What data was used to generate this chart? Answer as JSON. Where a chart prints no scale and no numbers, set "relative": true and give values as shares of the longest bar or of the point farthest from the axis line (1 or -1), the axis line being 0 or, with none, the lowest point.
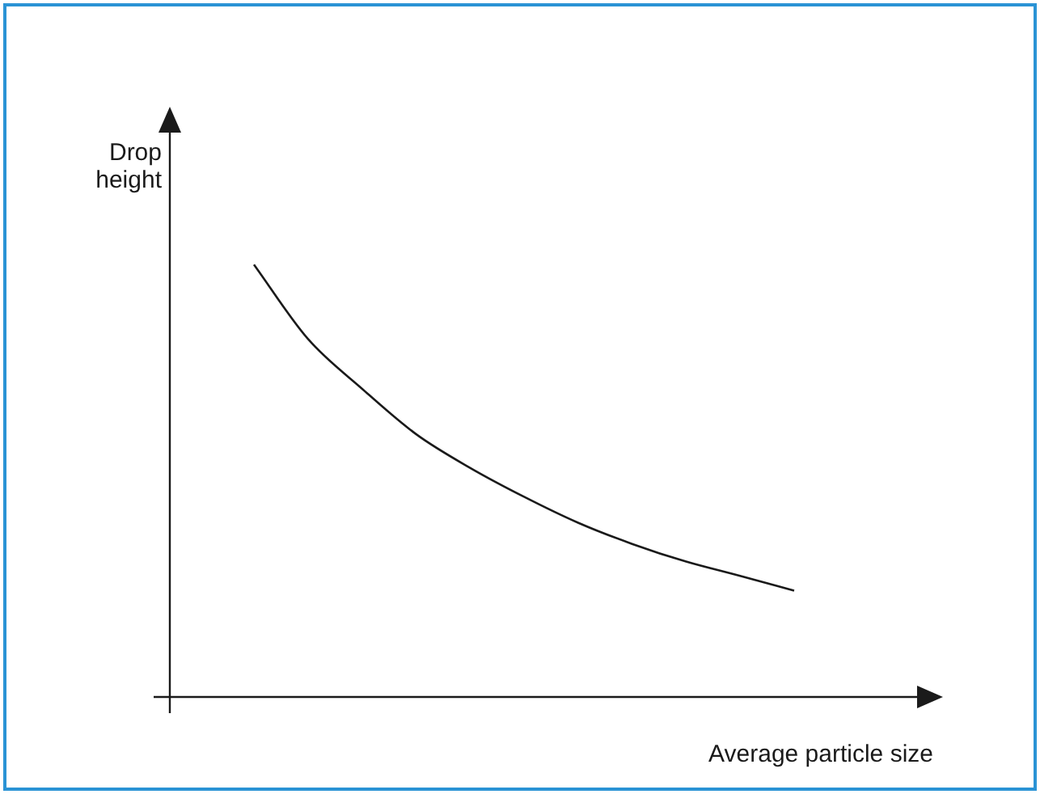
{
  "chart_data": {
    "type": "line",
    "relative": true,
    "xlabel": "Average particle size",
    "ylabel": "Drop height",
    "categories": [
      null,
      null,
      null,
      null,
      null,
      null,
      null,
      null,
      null,
      null,
      null
    ],
    "values": [
      1,
      0.828,
      0.713,
      0.608,
      0.53,
      0.463,
      0.403,
      0.354,
      0.313,
      0.28,
      0.246
    ],
    "color": "#1a1a1a",
    "marker": "none",
    "legend": false
  }
}
